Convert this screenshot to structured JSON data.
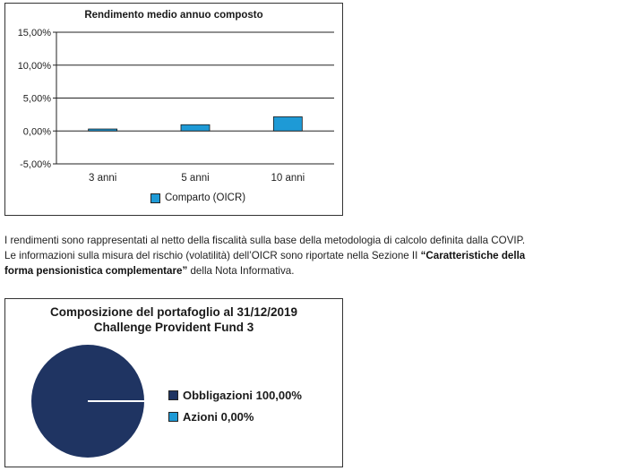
{
  "bar_chart_title": "Rendimento medio annuo composto",
  "bar_legend_label": "Comparto (OICR)",
  "bar_color": "#1e9ad6",
  "paragraph": {
    "line1": "I rendimenti sono rappresentati al netto della fiscalità sulla base della metodologia di calcolo definita dalla COVIP.",
    "line2_pre": "Le informazioni sulla misura del rischio (volatilità) dell’OICR sono riportate nella Sezione II ",
    "line2_bold": "“Caratteristiche della",
    "line3_bold": "forma pensionistica complementare”",
    "line3_post": " della Nota Informativa."
  },
  "pie_title_line1": "Composizione del portafoglio al 31/12/2019",
  "pie_title_line2": "Challenge Provident Fund 3",
  "pie_legend": [
    {
      "label": "Obbligazioni 100,00%",
      "color": "#1f3462"
    },
    {
      "label": "Azioni 0,00%",
      "color": "#1e9ad6"
    }
  ],
  "chart_data": [
    {
      "type": "bar",
      "title": "Rendimento medio annuo composto",
      "categories": [
        "3 anni",
        "5 anni",
        "10 anni"
      ],
      "series": [
        {
          "name": "Comparto (OICR)",
          "values": [
            0.3,
            0.95,
            2.15
          ]
        }
      ],
      "ylim": [
        -5,
        15
      ],
      "yticks": [
        -5,
        0,
        5,
        10,
        15
      ],
      "ytick_labels": [
        "-5,00%",
        "0,00%",
        "5,00%",
        "10,00%",
        "15,00%"
      ],
      "grid": true,
      "legend_position": "bottom"
    },
    {
      "type": "pie",
      "title": "Composizione del portafoglio al 31/12/2019 Challenge Provident Fund 3",
      "categories": [
        "Obbligazioni",
        "Azioni"
      ],
      "values": [
        100.0,
        0.0
      ],
      "legend_position": "right"
    }
  ]
}
